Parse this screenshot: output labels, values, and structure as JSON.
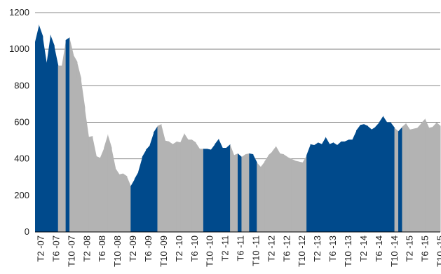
{
  "chart_data": {
    "type": "area",
    "title": "",
    "xlabel": "",
    "ylabel": "",
    "ylim": [
      0,
      1200
    ],
    "yticks": [
      0,
      200,
      400,
      600,
      800,
      1000,
      1200
    ],
    "grid": true,
    "legend": "none",
    "colors": {
      "highlight": "#004A8C",
      "base": "#B3B3B3"
    },
    "xticks": [
      "T2 -07",
      "T6 -07",
      "T10 -07",
      "T2 -08",
      "T6 -08",
      "T10 -08",
      "T2 -09",
      "T6 -09",
      "T10 -09",
      "T2 -10",
      "T6 -10",
      "T10 -10",
      "T2 -11",
      "T6 -11",
      "T10 -11",
      "T2 -12",
      "T6 -12",
      "T10 -12",
      "T2 -13",
      "T6 -13",
      "T10 -13",
      "T2 -14",
      "T6 -14",
      "T10 -14",
      "T2 -15",
      "T6 -15",
      "T10 -15"
    ],
    "series": [
      {
        "values": [
          1040,
          1135,
          1070,
          920,
          1080,
          1020,
          910,
          910,
          1050,
          1065,
          970,
          930,
          840,
          680,
          520,
          525,
          415,
          405,
          460,
          535,
          460,
          350,
          315,
          320,
          305,
          250,
          290,
          330,
          410,
          450,
          475,
          545,
          580,
          590,
          500,
          495,
          480,
          495,
          490,
          540,
          505,
          505,
          490,
          455,
          455,
          455,
          450,
          480,
          510,
          460,
          460,
          480,
          420,
          430,
          410,
          425,
          430,
          425,
          380,
          355,
          385,
          420,
          440,
          470,
          430,
          425,
          410,
          400,
          390,
          385,
          380,
          420,
          480,
          475,
          490,
          480,
          520,
          480,
          490,
          475,
          495,
          495,
          505,
          505,
          555,
          585,
          590,
          580,
          560,
          575,
          600,
          635,
          600,
          600,
          570,
          550,
          575,
          595,
          560,
          565,
          570,
          595,
          620,
          570,
          575,
          600,
          580
        ],
        "highlight": [
          1,
          1,
          1,
          1,
          1,
          1,
          0,
          0,
          1,
          0,
          0,
          0,
          0,
          0,
          0,
          0,
          0,
          0,
          0,
          0,
          0,
          0,
          0,
          0,
          0,
          1,
          1,
          1,
          1,
          1,
          1,
          1,
          0,
          0,
          0,
          0,
          0,
          0,
          0,
          0,
          0,
          0,
          0,
          0,
          1,
          1,
          1,
          1,
          1,
          1,
          1,
          0,
          0,
          1,
          0,
          0,
          1,
          1,
          0,
          0,
          0,
          0,
          0,
          0,
          0,
          0,
          0,
          0,
          0,
          0,
          0,
          1,
          1,
          1,
          1,
          1,
          1,
          1,
          1,
          1,
          1,
          1,
          1,
          1,
          1,
          1,
          1,
          1,
          1,
          1,
          1,
          1,
          1,
          1,
          0,
          1,
          0,
          0,
          0,
          0,
          0,
          0,
          0,
          0,
          0,
          0,
          0
        ]
      }
    ]
  }
}
